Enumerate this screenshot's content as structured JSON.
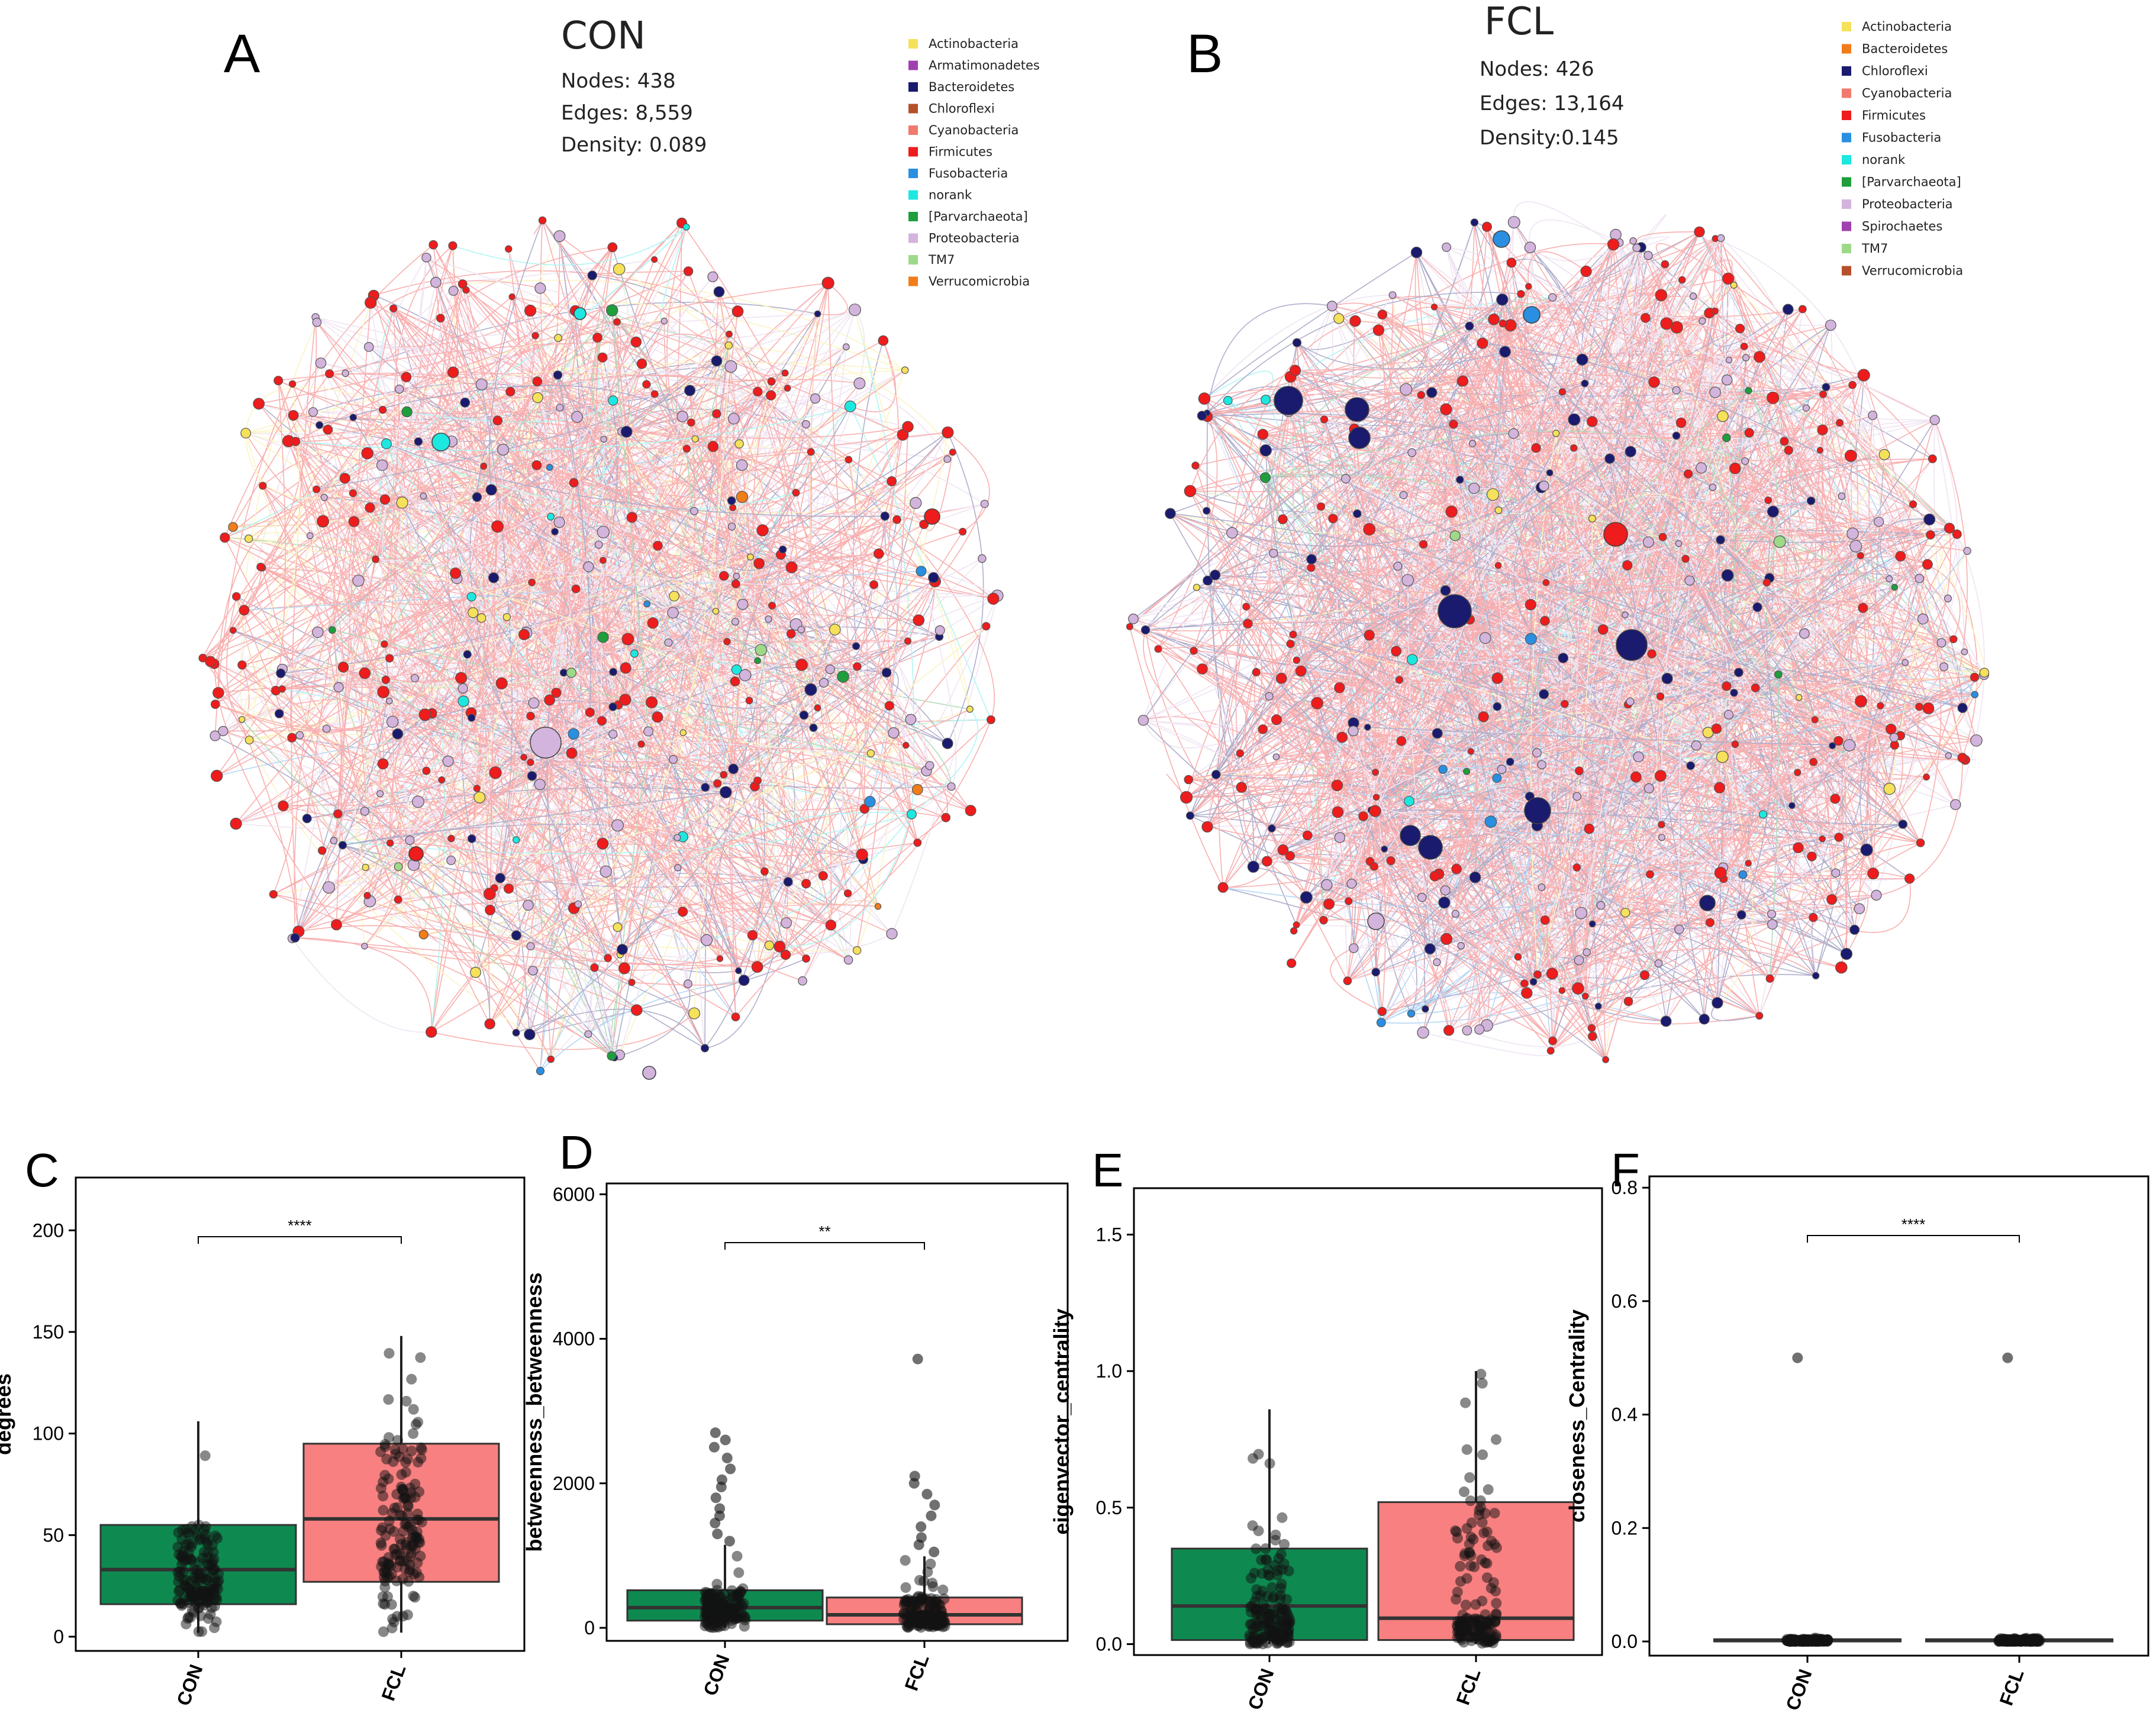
{
  "figure": {
    "networks": [
      {
        "panel": "A",
        "title": "CON",
        "nodes_label": "Nodes: 438",
        "edges_label": "Edges:  8,559",
        "density_label": "Density: 0.089",
        "legend": [
          {
            "label": "Actinobacteria",
            "color": "#f5e15a"
          },
          {
            "label": "Armatimonadetes",
            "color": "#a040b0"
          },
          {
            "label": "Bacteroidetes",
            "color": "#1a1a6e"
          },
          {
            "label": "Chloroflexi",
            "color": "#b5502a"
          },
          {
            "label": "Cyanobacteria",
            "color": "#f07a6e"
          },
          {
            "label": "Firmicutes",
            "color": "#ee1c1c"
          },
          {
            "label": "Fusobacteria",
            "color": "#2a8fe0"
          },
          {
            "label": "norank",
            "color": "#1de8e0"
          },
          {
            "label": "[Parvarchaeota]",
            "color": "#1e9e3c"
          },
          {
            "label": "Proteobacteria",
            "color": "#d2b4dc"
          },
          {
            "label": "TM7",
            "color": "#9ed98a"
          },
          {
            "label": "Verrucomicrobia",
            "color": "#f07d1a"
          }
        ]
      },
      {
        "panel": "B",
        "title": "FCL",
        "nodes_label": "Nodes: 426",
        "edges_label": "Edges: 13,164",
        "density_label": "Density:0.145",
        "legend": [
          {
            "label": "Actinobacteria",
            "color": "#f5e15a"
          },
          {
            "label": "Bacteroidetes",
            "color": "#f07d1a"
          },
          {
            "label": "Chloroflexi",
            "color": "#1a1a6e"
          },
          {
            "label": "Cyanobacteria",
            "color": "#f07a6e"
          },
          {
            "label": "Firmicutes",
            "color": "#ee1c1c"
          },
          {
            "label": "Fusobacteria",
            "color": "#2a8fe0"
          },
          {
            "label": "norank",
            "color": "#1de8e0"
          },
          {
            "label": "[Parvarchaeota]",
            "color": "#1e9e3c"
          },
          {
            "label": "Proteobacteria",
            "color": "#d2b4dc"
          },
          {
            "label": "Spirochaetes",
            "color": "#a040b0"
          },
          {
            "label": "TM7",
            "color": "#9ed98a"
          },
          {
            "label": "Verrucomicrobia",
            "color": "#b5502a"
          }
        ]
      }
    ],
    "group_colors": {
      "CON": "#0e8a50",
      "FCL": "#f88080"
    }
  },
  "chart_data": [
    {
      "panel": "C",
      "type": "box",
      "title": "",
      "xlabel": "",
      "ylabel": "degrees",
      "categories": [
        "CON",
        "FCL"
      ],
      "yticks": [
        0,
        50,
        100,
        150,
        200
      ],
      "ylim": [
        -7,
        226
      ],
      "boxes": [
        {
          "group": "CON",
          "q1": 16,
          "median": 33,
          "q3": 55,
          "whisker_low": 2,
          "whisker_high": 106
        },
        {
          "group": "FCL",
          "q1": 27,
          "median": 58,
          "q3": 95,
          "whisker_low": 2,
          "whisker_high": 148
        }
      ],
      "significance": "****"
    },
    {
      "panel": "D",
      "type": "box",
      "title": "",
      "xlabel": "",
      "ylabel": "betweenness_betweenness",
      "categories": [
        "CON",
        "FCL"
      ],
      "yticks": [
        0,
        2000,
        4000,
        6000
      ],
      "ylim": [
        -180,
        6150
      ],
      "boxes": [
        {
          "group": "CON",
          "q1": 100,
          "median": 280,
          "q3": 520,
          "whisker_low": 0,
          "whisker_high": 1150
        },
        {
          "group": "FCL",
          "q1": 50,
          "median": 180,
          "q3": 420,
          "whisker_low": 0,
          "whisker_high": 990
        }
      ],
      "outliers": [
        {
          "group": "CON",
          "values": [
            1200,
            1300,
            1450,
            1550,
            1650,
            1800,
            1950,
            2050,
            2200,
            2350,
            2500,
            2600,
            2700
          ]
        },
        {
          "group": "FCL",
          "values": [
            1050,
            1150,
            1250,
            1400,
            1550,
            1700,
            1850,
            2000,
            2100,
            3720
          ]
        }
      ],
      "significance": "**"
    },
    {
      "panel": "E",
      "type": "box",
      "title": "",
      "xlabel": "",
      "ylabel": "eigenvector_centrality",
      "categories": [
        "CON",
        "FCL"
      ],
      "yticks": [
        0.0,
        0.5,
        1.0,
        1.5
      ],
      "ylim": [
        -0.04,
        1.67
      ],
      "boxes": [
        {
          "group": "CON",
          "q1": 0.015,
          "median": 0.14,
          "q3": 0.35,
          "whisker_low": 0.0,
          "whisker_high": 0.86
        },
        {
          "group": "FCL",
          "q1": 0.015,
          "median": 0.095,
          "q3": 0.52,
          "whisker_low": 0.0,
          "whisker_high": 1.0
        }
      ],
      "significance": ""
    },
    {
      "panel": "F",
      "type": "box",
      "title": "",
      "xlabel": "",
      "ylabel": "closeness_Centrality",
      "categories": [
        "CON",
        "FCL"
      ],
      "yticks": [
        0.0,
        0.2,
        0.4,
        0.6,
        0.8
      ],
      "ylim": [
        -0.025,
        0.82
      ],
      "boxes": [
        {
          "group": "CON",
          "q1": 0.0,
          "median": 0.002,
          "q3": 0.004,
          "whisker_low": 0.0,
          "whisker_high": 0.006
        },
        {
          "group": "FCL",
          "q1": 0.0,
          "median": 0.002,
          "q3": 0.004,
          "whisker_low": 0.0,
          "whisker_high": 0.006
        }
      ],
      "outliers": [
        {
          "group": "CON",
          "values": [
            0.5
          ]
        },
        {
          "group": "FCL",
          "values": [
            0.5
          ]
        }
      ],
      "significance": "****"
    }
  ]
}
